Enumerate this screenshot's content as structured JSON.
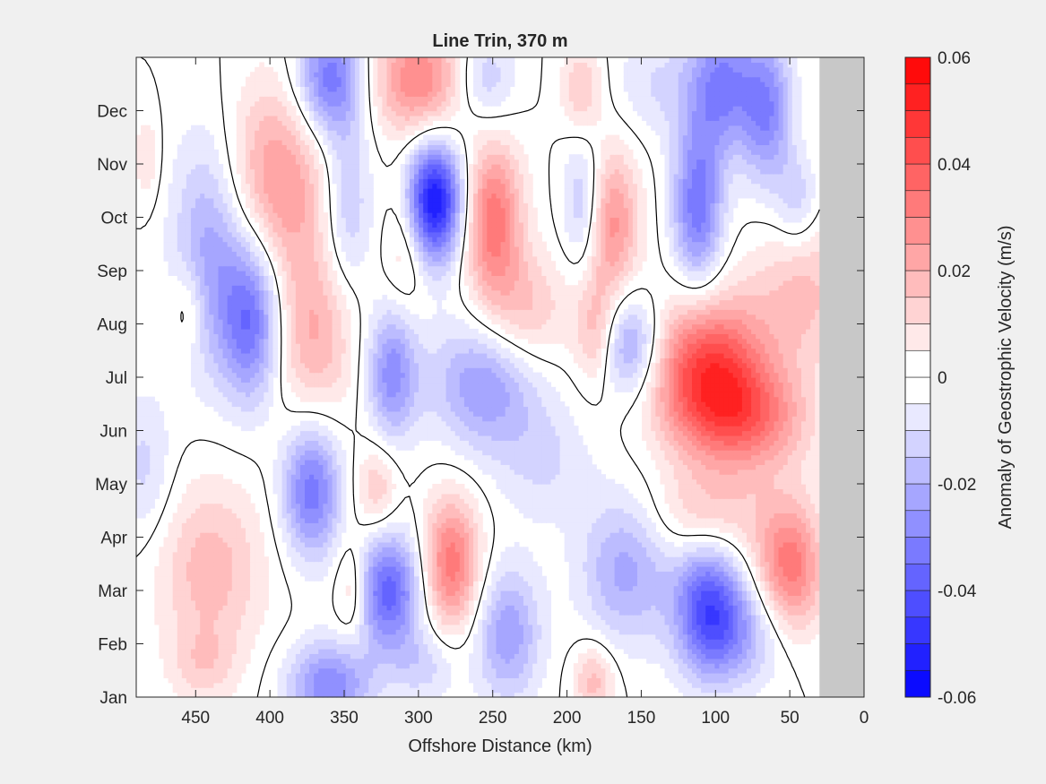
{
  "chart_data": {
    "type": "heatmap",
    "title": "Line Trin, 370 m",
    "xlabel": "Offshore Distance (km)",
    "ylabel": "",
    "xlim": [
      490,
      0
    ],
    "x_ticks": [
      450,
      400,
      350,
      300,
      250,
      200,
      150,
      100,
      50,
      0
    ],
    "y_ticks": [
      "Jan",
      "Feb",
      "Mar",
      "Apr",
      "May",
      "Jun",
      "Jul",
      "Aug",
      "Sep",
      "Oct",
      "Nov",
      "Dec"
    ],
    "y_ticks_month_index": [
      0,
      1,
      2,
      3,
      4,
      5,
      6,
      7,
      8,
      9,
      10,
      11
    ],
    "ylim_months": [
      0,
      12
    ],
    "no_data_region_km": [
      0,
      30
    ],
    "colorbar": {
      "label": "Anomaly of Geostrophic Velocity (m/s)",
      "clim": [
        -0.06,
        0.06
      ],
      "ticks": [
        -0.06,
        -0.04,
        -0.02,
        0,
        0.02,
        0.04,
        0.06
      ],
      "tick_labels": [
        "-0.06",
        "-0.04",
        "-0.02",
        "0",
        "0.02",
        "0.04",
        "0.06"
      ],
      "levels": 24,
      "low_color": "#0000ff",
      "mid_color": "#ffffff",
      "high_color": "#ff0000"
    },
    "nodata_color": "#c8c8c8",
    "contour_level": 0,
    "features": [
      {
        "x_km": 290,
        "month": 9.3,
        "amp": -0.058,
        "sx": 14,
        "sy": 0.8
      },
      {
        "x_km": 250,
        "month": 9.0,
        "amp": 0.034,
        "sx": 14,
        "sy": 1.0
      },
      {
        "x_km": 230,
        "month": 7.2,
        "amp": 0.018,
        "sx": 22,
        "sy": 0.8
      },
      {
        "x_km": 255,
        "month": 5.9,
        "amp": -0.026,
        "sx": 26,
        "sy": 0.9
      },
      {
        "x_km": 105,
        "month": 6.1,
        "amp": 0.046,
        "sx": 28,
        "sy": 1.0
      },
      {
        "x_km": 75,
        "month": 5.2,
        "amp": 0.025,
        "sx": 28,
        "sy": 0.7
      },
      {
        "x_km": 40,
        "month": 7.6,
        "amp": 0.016,
        "sx": 24,
        "sy": 1.0
      },
      {
        "x_km": 50,
        "month": 2.4,
        "amp": 0.034,
        "sx": 16,
        "sy": 0.9
      },
      {
        "x_km": 105,
        "month": 1.7,
        "amp": -0.038,
        "sx": 16,
        "sy": 0.9
      },
      {
        "x_km": 160,
        "month": 2.4,
        "amp": -0.022,
        "sx": 22,
        "sy": 1.0
      },
      {
        "x_km": 80,
        "month": 1.2,
        "amp": -0.018,
        "sx": 22,
        "sy": 0.7
      },
      {
        "x_km": 158,
        "month": 6.6,
        "amp": -0.028,
        "sx": 16,
        "sy": 0.7
      },
      {
        "x_km": 180,
        "month": 6.8,
        "amp": 0.02,
        "sx": 10,
        "sy": 0.7
      },
      {
        "x_km": 172,
        "month": 8.9,
        "amp": 0.03,
        "sx": 14,
        "sy": 1.0
      },
      {
        "x_km": 188,
        "month": 9.2,
        "amp": -0.024,
        "sx": 10,
        "sy": 0.9
      },
      {
        "x_km": 112,
        "month": 9.2,
        "amp": -0.034,
        "sx": 12,
        "sy": 1.1
      },
      {
        "x_km": 65,
        "month": 11.0,
        "amp": -0.028,
        "sx": 12,
        "sy": 1.0
      },
      {
        "x_km": 95,
        "month": 11.5,
        "amp": -0.03,
        "sx": 16,
        "sy": 0.9
      },
      {
        "x_km": 140,
        "month": 11.5,
        "amp": -0.01,
        "sx": 22,
        "sy": 0.7
      },
      {
        "x_km": 45,
        "month": 9.3,
        "amp": -0.014,
        "sx": 10,
        "sy": 0.6
      },
      {
        "x_km": 300,
        "month": 11.6,
        "amp": 0.03,
        "sx": 22,
        "sy": 0.8
      },
      {
        "x_km": 360,
        "month": 11.6,
        "amp": -0.035,
        "sx": 16,
        "sy": 0.8
      },
      {
        "x_km": 255,
        "month": 11.6,
        "amp": -0.016,
        "sx": 14,
        "sy": 0.6
      },
      {
        "x_km": 190,
        "month": 11.4,
        "amp": 0.016,
        "sx": 10,
        "sy": 0.6
      },
      {
        "x_km": 395,
        "month": 9.7,
        "amp": 0.026,
        "sx": 26,
        "sy": 1.3
      },
      {
        "x_km": 440,
        "month": 8.4,
        "amp": -0.024,
        "sx": 18,
        "sy": 1.6
      },
      {
        "x_km": 412,
        "month": 7.1,
        "amp": -0.034,
        "sx": 14,
        "sy": 1.1
      },
      {
        "x_km": 370,
        "month": 6.8,
        "amp": 0.02,
        "sx": 20,
        "sy": 1.2
      },
      {
        "x_km": 318,
        "month": 6.1,
        "amp": -0.028,
        "sx": 12,
        "sy": 0.9
      },
      {
        "x_km": 348,
        "month": 9.2,
        "amp": -0.018,
        "sx": 12,
        "sy": 1.2
      },
      {
        "x_km": 308,
        "month": 8.6,
        "amp": 0.016,
        "sx": 10,
        "sy": 0.9
      },
      {
        "x_km": 372,
        "month": 3.9,
        "amp": -0.034,
        "sx": 14,
        "sy": 0.9
      },
      {
        "x_km": 328,
        "month": 3.9,
        "amp": 0.016,
        "sx": 10,
        "sy": 0.6
      },
      {
        "x_km": 320,
        "month": 2.0,
        "amp": -0.038,
        "sx": 16,
        "sy": 0.8
      },
      {
        "x_km": 278,
        "month": 2.5,
        "amp": 0.034,
        "sx": 14,
        "sy": 0.9
      },
      {
        "x_km": 345,
        "month": 2.0,
        "amp": 0.016,
        "sx": 8,
        "sy": 0.7
      },
      {
        "x_km": 440,
        "month": 2.4,
        "amp": 0.018,
        "sx": 26,
        "sy": 1.2
      },
      {
        "x_km": 485,
        "month": 4.3,
        "amp": -0.012,
        "sx": 14,
        "sy": 1.0
      },
      {
        "x_km": 455,
        "month": 7.3,
        "amp": 0.012,
        "sx": 8,
        "sy": 0.6
      },
      {
        "x_km": 483,
        "month": 10.1,
        "amp": 0.01,
        "sx": 6,
        "sy": 0.6
      },
      {
        "x_km": 360,
        "month": 0.2,
        "amp": -0.03,
        "sx": 20,
        "sy": 0.6
      },
      {
        "x_km": 240,
        "month": 1.2,
        "amp": -0.024,
        "sx": 16,
        "sy": 0.9
      },
      {
        "x_km": 182,
        "month": 0.3,
        "amp": 0.018,
        "sx": 10,
        "sy": 0.5
      },
      {
        "x_km": 295,
        "month": 0.6,
        "amp": -0.012,
        "sx": 16,
        "sy": 0.5
      },
      {
        "x_km": 445,
        "month": 0.6,
        "amp": 0.01,
        "sx": 16,
        "sy": 0.5
      },
      {
        "x_km": 105,
        "month": 3.4,
        "amp": 0.016,
        "sx": 28,
        "sy": 0.6
      },
      {
        "x_km": 215,
        "month": 4.4,
        "amp": -0.01,
        "sx": 22,
        "sy": 0.8
      }
    ]
  }
}
